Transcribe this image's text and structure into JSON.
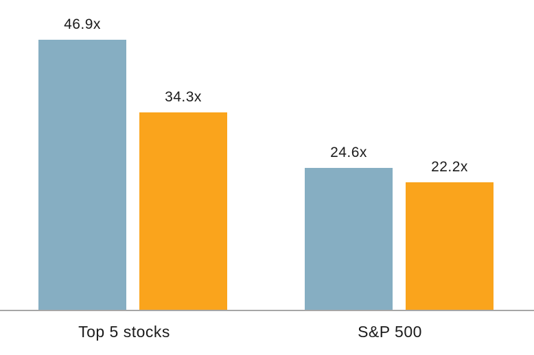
{
  "chart_data": {
    "type": "bar",
    "title": "",
    "categories": [
      "Top 5 stocks",
      "S&P 500"
    ],
    "series": [
      {
        "name": "blue-series",
        "color": "#86AEC2",
        "values": [
          46.9,
          24.6
        ],
        "labels": [
          "46.9x",
          "24.6x"
        ]
      },
      {
        "name": "orange-series",
        "color": "#FAA41C",
        "values": [
          34.3,
          22.2
        ],
        "labels": [
          "34.3x",
          "22.2x"
        ]
      }
    ],
    "unit_suffix": "x",
    "ylim": [
      0,
      50
    ],
    "grid": false,
    "legend_position": "none",
    "value_labels_shown": true,
    "axis_line_color": "#A6A6A6",
    "text_color": "#1B1B1B",
    "background": "#FFFFFF"
  }
}
